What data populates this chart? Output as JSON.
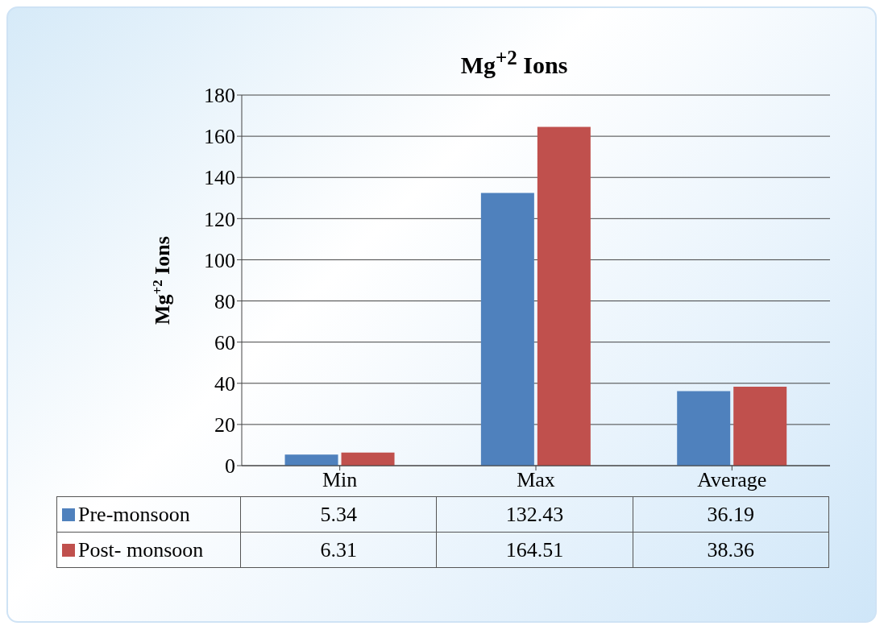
{
  "chart_data": {
    "type": "bar",
    "title": "Mg$^{+2}$ Ions",
    "ylabel": "Mg$^{+2}$ Ions",
    "categories": [
      "Min",
      "Max",
      "Average"
    ],
    "series": [
      {
        "name": "Pre-monsoon",
        "color": "#4f81bd",
        "values": [
          5.34,
          132.43,
          36.19
        ]
      },
      {
        "name": "Post- monsoon",
        "color": "#c0504d",
        "values": [
          6.31,
          164.51,
          38.36
        ]
      }
    ],
    "ylim": [
      0,
      180
    ],
    "yticks": [
      0,
      20,
      40,
      60,
      80,
      100,
      120,
      140,
      160,
      180
    ],
    "grid": "y",
    "legend": "bottom",
    "data_labels": true
  }
}
